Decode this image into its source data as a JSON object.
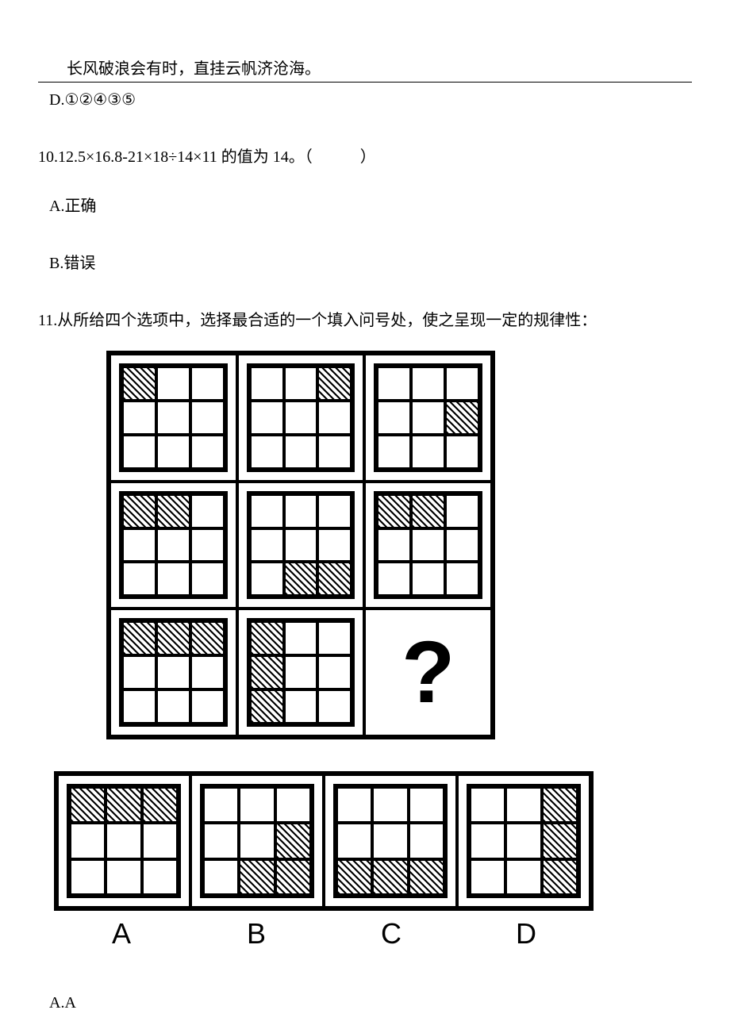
{
  "header": {
    "motto": "长风破浪会有时，直挂云帆济沧海。"
  },
  "q9_optD": "D.①②④③⑤",
  "q10": {
    "text": "10.12.5×16.8-21×18÷14×11 的值为 14。（　　　）",
    "optA": "A.正确",
    "optB": "B.错误"
  },
  "q11": {
    "text": "11.从所给四个选项中，选择最合适的一个填入问号处，使之呈现一定的规律性：",
    "grid_type": "3x3-of-3x3-hatch-pattern",
    "panels": [
      {
        "hatched_cells": [
          0
        ]
      },
      {
        "hatched_cells": [
          2
        ]
      },
      {
        "hatched_cells": [
          5
        ]
      },
      {
        "hatched_cells": [
          0,
          1
        ]
      },
      {
        "hatched_cells": [
          7,
          8
        ]
      },
      {
        "hatched_cells": [
          0,
          1
        ]
      },
      {
        "hatched_cells": [
          0,
          1,
          2
        ]
      },
      {
        "hatched_cells": [
          0,
          3,
          6
        ]
      },
      {
        "question_mark": true
      }
    ],
    "options": [
      {
        "label": "A",
        "hatched_cells": [
          0,
          1,
          2
        ]
      },
      {
        "label": "B",
        "hatched_cells": [
          5,
          7,
          8
        ]
      },
      {
        "label": "C",
        "hatched_cells": [
          6,
          7,
          8
        ]
      },
      {
        "label": "D",
        "hatched_cells": [
          2,
          5,
          8
        ]
      }
    ],
    "ansA": "A.A"
  },
  "colors": {
    "text": "#000000",
    "background": "#ffffff",
    "border": "#000000",
    "hatch_fg": "#000000",
    "hatch_bg": "#ffffff"
  },
  "fonts": {
    "body_family": "SimSun",
    "body_size_pt": 15,
    "label_family": "Arial",
    "label_size_pt": 27
  }
}
